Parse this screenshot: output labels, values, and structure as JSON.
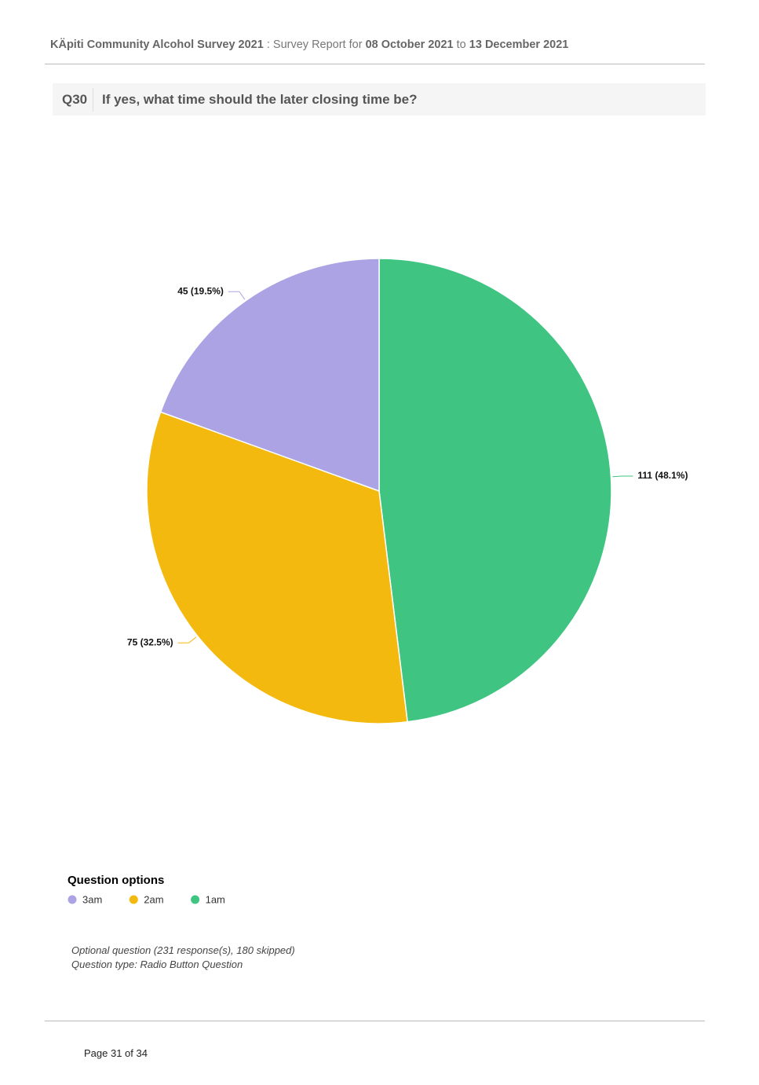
{
  "header": {
    "survey": "KÄpiti Community Alcohol Survey 2021",
    "separator": ":",
    "report": "Survey Report for",
    "start": "08 October 2021",
    "to": "to",
    "end": "13 December 2021"
  },
  "question": {
    "number": "Q30",
    "text": "If yes, what time should the later closing time be?"
  },
  "chart_data": {
    "type": "pie",
    "categories": [
      "3am",
      "2am",
      "1am"
    ],
    "values": [
      45,
      75,
      111
    ],
    "value_labels": [
      "45 (19.5%)",
      "75 (32.5%)",
      "111 (48.1%)"
    ],
    "colors": [
      "#aba3e4",
      "#f3b90e",
      "#3fc482"
    ],
    "legend_title": "Question options"
  },
  "notes": [
    "Optional question (231 response(s), 180 skipped)",
    "Question type: Radio Button Question"
  ],
  "page": "Page 31 of 34"
}
